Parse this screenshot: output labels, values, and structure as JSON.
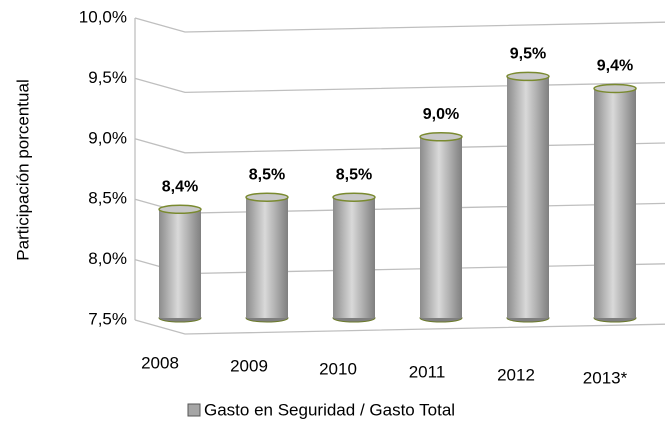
{
  "chart_data": {
    "type": "bar",
    "y_label": "Participación porcentual",
    "categories": [
      "2008",
      "2009",
      "2010",
      "2011",
      "2012",
      "2013*"
    ],
    "series": [
      {
        "name": "Gasto en Seguridad / Gasto Total",
        "color": "#a6a6a6",
        "values": [
          8.4,
          8.5,
          8.5,
          9.0,
          9.5,
          9.4
        ],
        "value_labels": [
          "8,4%",
          "8,5%",
          "8,5%",
          "9,0%",
          "9,5%",
          "9,4%"
        ]
      }
    ],
    "ylim": [
      7.5,
      10.0
    ],
    "yticks": [
      {
        "value": 7.5,
        "label": "7,5%"
      },
      {
        "value": 8.0,
        "label": "8,0%"
      },
      {
        "value": 8.5,
        "label": "8,5%"
      },
      {
        "value": 9.0,
        "label": "9,0%"
      },
      {
        "value": 9.5,
        "label": "9,5%"
      },
      {
        "value": 10.0,
        "label": "10,0%"
      }
    ],
    "grid": true
  }
}
